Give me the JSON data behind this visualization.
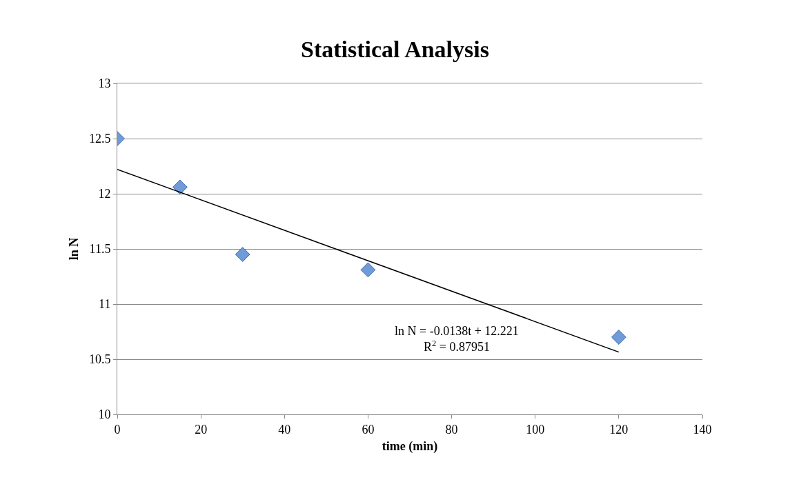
{
  "chart_data": {
    "type": "scatter",
    "title": "Statistical Analysis",
    "xlabel": "time (min)",
    "ylabel": "ln N",
    "series": [
      {
        "color": "#6f9bd8",
        "marker": "diamond",
        "x": [
          0,
          15,
          30,
          60,
          120
        ],
        "values": [
          12.5,
          12.06,
          11.45,
          11.31,
          10.7
        ]
      },
      {
        "type": "line",
        "color": "#000000",
        "marker": "none",
        "x": [
          0,
          120
        ],
        "values": [
          12.221,
          10.565
        ]
      }
    ],
    "xlim": [
      0,
      140
    ],
    "xticks": [
      0,
      20,
      40,
      60,
      80,
      100,
      120,
      140
    ],
    "ylim": [
      10,
      13
    ],
    "yticks": [
      10,
      10.5,
      11,
      11.5,
      12,
      12.5,
      13
    ],
    "grid": "y",
    "annotations": [
      "ln N = -0.0138t + 12.221\nR$^{2}$ = 0.87951"
    ]
  }
}
